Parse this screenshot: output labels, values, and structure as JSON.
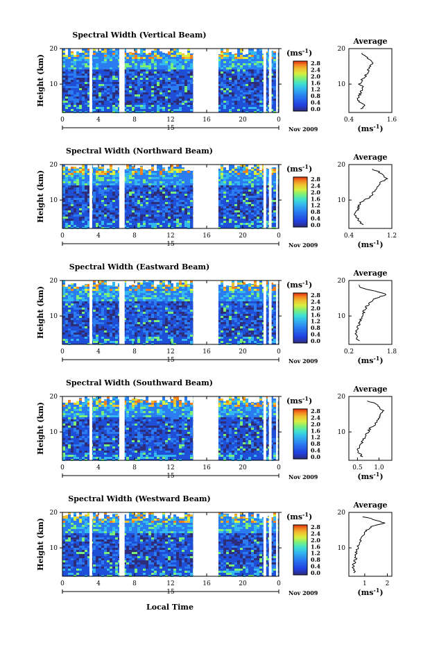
{
  "figure": {
    "xlabel": "Local Time",
    "x_ticks": [
      "0",
      "4",
      "8",
      "12",
      "16",
      "20",
      "0"
    ],
    "day_label": "15",
    "date_label": "Nov 2009",
    "ylabel": "Height (km)",
    "y_ticks": [
      "20",
      "10"
    ],
    "colorbar_unit": "(ms",
    "colorbar_unit_sup": "-1",
    "colorbar_unit_close": ")",
    "colorbar_ticks": [
      "2.8",
      "2.4",
      "2.0",
      "1.6",
      "1.2",
      "0.8",
      "0.4",
      "0.0"
    ],
    "avg_title": "Average",
    "avg_unit": "(ms",
    "avg_unit_sup": "-1",
    "avg_unit_close": ")",
    "colors": {
      "background": "#1f4fd6",
      "gap": "#ffffff",
      "bar_scale": [
        "#2d2d7a",
        "#2040e0",
        "#2a7cf0",
        "#33b8f0",
        "#40e0d0",
        "#7af07a",
        "#d8f040",
        "#f0c030",
        "#f08020",
        "#e02a10"
      ]
    }
  },
  "chart_data": [
    {
      "type": "heatmap",
      "title": "Spectral Width (Vertical Beam)",
      "x_range": [
        0,
        24
      ],
      "y_range": [
        2,
        20
      ],
      "clim": [
        0.0,
        3.0
      ],
      "data_gaps_local_time": [
        [
          3.0,
          3.3
        ],
        [
          6.3,
          6.9
        ],
        [
          14.5,
          17.3
        ],
        [
          22.3,
          22.6
        ],
        [
          22.9,
          23.2
        ],
        [
          23.7,
          23.9
        ]
      ],
      "average_profile": {
        "xlim": [
          0.4,
          1.6
        ],
        "x_ticks": [
          "0.4",
          "1.6"
        ],
        "y_ticks": [
          "20",
          "10"
        ],
        "height_km": [
          3,
          4,
          5,
          6,
          7,
          8,
          9,
          10,
          11,
          12,
          13,
          14,
          15,
          16,
          17,
          18,
          19
        ],
        "value": [
          0.75,
          0.85,
          0.7,
          0.65,
          0.7,
          0.75,
          0.8,
          0.7,
          0.75,
          0.85,
          0.9,
          0.95,
          1.0,
          1.05,
          0.95,
          0.85,
          0.75
        ]
      }
    },
    {
      "type": "heatmap",
      "title": "Spectral Width (Northward Beam)",
      "x_range": [
        0,
        24
      ],
      "y_range": [
        2,
        20
      ],
      "clim": [
        0.0,
        3.0
      ],
      "data_gaps_local_time": [
        [
          3.0,
          3.3
        ],
        [
          6.3,
          6.9
        ],
        [
          14.5,
          17.3
        ],
        [
          22.3,
          22.6
        ],
        [
          22.9,
          23.2
        ],
        [
          23.7,
          23.9
        ]
      ],
      "average_profile": {
        "xlim": [
          0.4,
          1.2
        ],
        "x_ticks": [
          "0.4",
          "1.2"
        ],
        "y_ticks": [
          "20",
          "10"
        ],
        "height_km": [
          3,
          4,
          5,
          6,
          7,
          8,
          9,
          10,
          11,
          12,
          13,
          14,
          15,
          16,
          17,
          18,
          19
        ],
        "value": [
          0.65,
          0.6,
          0.55,
          0.5,
          0.55,
          0.58,
          0.6,
          0.7,
          0.8,
          0.85,
          0.9,
          0.95,
          1.0,
          1.1,
          1.05,
          0.95,
          0.8
        ]
      }
    },
    {
      "type": "heatmap",
      "title": "Spectral Width (Eastward Beam)",
      "x_range": [
        0,
        24
      ],
      "y_range": [
        2,
        20
      ],
      "clim": [
        0.0,
        3.0
      ],
      "data_gaps_local_time": [
        [
          3.0,
          3.3
        ],
        [
          6.3,
          6.9
        ],
        [
          14.5,
          17.3
        ],
        [
          22.3,
          22.6
        ],
        [
          22.9,
          23.2
        ],
        [
          23.7,
          23.9
        ]
      ],
      "average_profile": {
        "xlim": [
          0.2,
          1.8
        ],
        "x_ticks": [
          "0.2",
          "1.8"
        ],
        "y_ticks": [
          "20",
          "10"
        ],
        "height_km": [
          3,
          4,
          5,
          6,
          7,
          8,
          9,
          10,
          11,
          12,
          13,
          14,
          15,
          16,
          17,
          18,
          19
        ],
        "value": [
          0.55,
          0.5,
          0.45,
          0.5,
          0.55,
          0.6,
          0.65,
          0.7,
          0.75,
          0.8,
          0.9,
          1.0,
          1.2,
          1.6,
          1.2,
          0.6,
          0.5
        ]
      }
    },
    {
      "type": "heatmap",
      "title": "Spectral Width (Southward Beam)",
      "x_range": [
        0,
        24
      ],
      "y_range": [
        2,
        20
      ],
      "clim": [
        0.0,
        3.0
      ],
      "data_gaps_local_time": [
        [
          3.0,
          3.3
        ],
        [
          6.3,
          6.9
        ],
        [
          14.5,
          17.3
        ],
        [
          22.3,
          22.6
        ],
        [
          22.9,
          23.2
        ],
        [
          23.7,
          23.9
        ]
      ],
      "average_profile": {
        "xlim": [
          0.3,
          1.3
        ],
        "x_ticks": [
          "0.5",
          "1.0"
        ],
        "y_ticks": [
          "20",
          "10"
        ],
        "height_km": [
          3,
          4,
          5,
          6,
          7,
          8,
          9,
          10,
          11,
          12,
          13,
          14,
          15,
          16,
          17,
          18,
          19
        ],
        "value": [
          0.6,
          0.55,
          0.5,
          0.55,
          0.6,
          0.65,
          0.7,
          0.75,
          0.8,
          0.9,
          0.95,
          1.0,
          1.05,
          1.1,
          1.0,
          0.9,
          0.7
        ]
      }
    },
    {
      "type": "heatmap",
      "title": "Spectral Width (Westward Beam)",
      "x_range": [
        0,
        24
      ],
      "y_range": [
        2,
        20
      ],
      "clim": [
        0.0,
        3.0
      ],
      "data_gaps_local_time": [
        [
          3.0,
          3.3
        ],
        [
          6.3,
          6.9
        ],
        [
          14.5,
          17.3
        ],
        [
          22.3,
          22.6
        ],
        [
          22.9,
          23.2
        ],
        [
          23.7,
          23.9
        ]
      ],
      "average_profile": {
        "xlim": [
          0.3,
          2.2
        ],
        "x_ticks": [
          "1",
          "2"
        ],
        "y_ticks": [
          "20",
          "10"
        ],
        "height_km": [
          3,
          4,
          5,
          6,
          7,
          8,
          9,
          10,
          11,
          12,
          13,
          14,
          15,
          16,
          17,
          18,
          19
        ],
        "value": [
          0.55,
          0.5,
          0.5,
          0.55,
          0.6,
          0.6,
          0.65,
          0.7,
          0.75,
          0.8,
          0.9,
          1.0,
          1.1,
          1.3,
          1.9,
          1.4,
          0.8
        ]
      }
    }
  ]
}
